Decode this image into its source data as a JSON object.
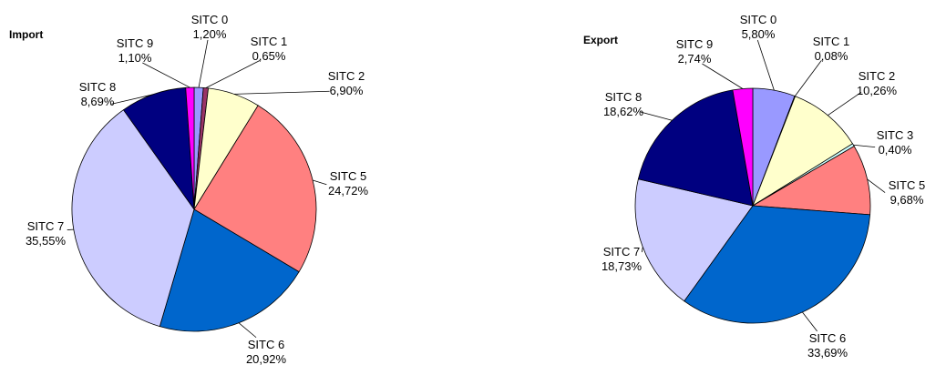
{
  "chart_data": [
    {
      "type": "pie",
      "title": "Import",
      "categories": [
        "SITC 0",
        "SITC 1",
        "SITC 2",
        "SITC 5",
        "SITC 6",
        "SITC 7",
        "SITC 8",
        "SITC 9"
      ],
      "values": [
        1.2,
        0.65,
        6.9,
        24.72,
        20.92,
        35.55,
        8.69,
        1.1
      ],
      "value_labels": [
        "1,20%",
        "0,65%",
        "6,90%",
        "24,72%",
        "20,92%",
        "35,55%",
        "8,69%",
        "1,10%"
      ],
      "colors": [
        "#9999ff",
        "#993366",
        "#ffffcc",
        "#ff8080",
        "#0066cc",
        "#ccccff",
        "#000080",
        "#ff00ff"
      ]
    },
    {
      "type": "pie",
      "title": "Export",
      "categories": [
        "SITC 0",
        "SITC 1",
        "SITC 2",
        "SITC 3",
        "SITC 5",
        "SITC 6",
        "SITC 7",
        "SITC 8",
        "SITC 9"
      ],
      "values": [
        5.8,
        0.08,
        10.26,
        0.4,
        9.68,
        33.69,
        18.73,
        18.62,
        2.74
      ],
      "value_labels": [
        "5,80%",
        "0,08%",
        "10,26%",
        "0,40%",
        "9,68%",
        "33,69%",
        "18,73%",
        "18,62%",
        "2,74%"
      ],
      "colors": [
        "#9999ff",
        "#993366",
        "#ffffcc",
        "#ccffff",
        "#ff8080",
        "#0066cc",
        "#ccccff",
        "#000080",
        "#ff00ff"
      ]
    }
  ]
}
